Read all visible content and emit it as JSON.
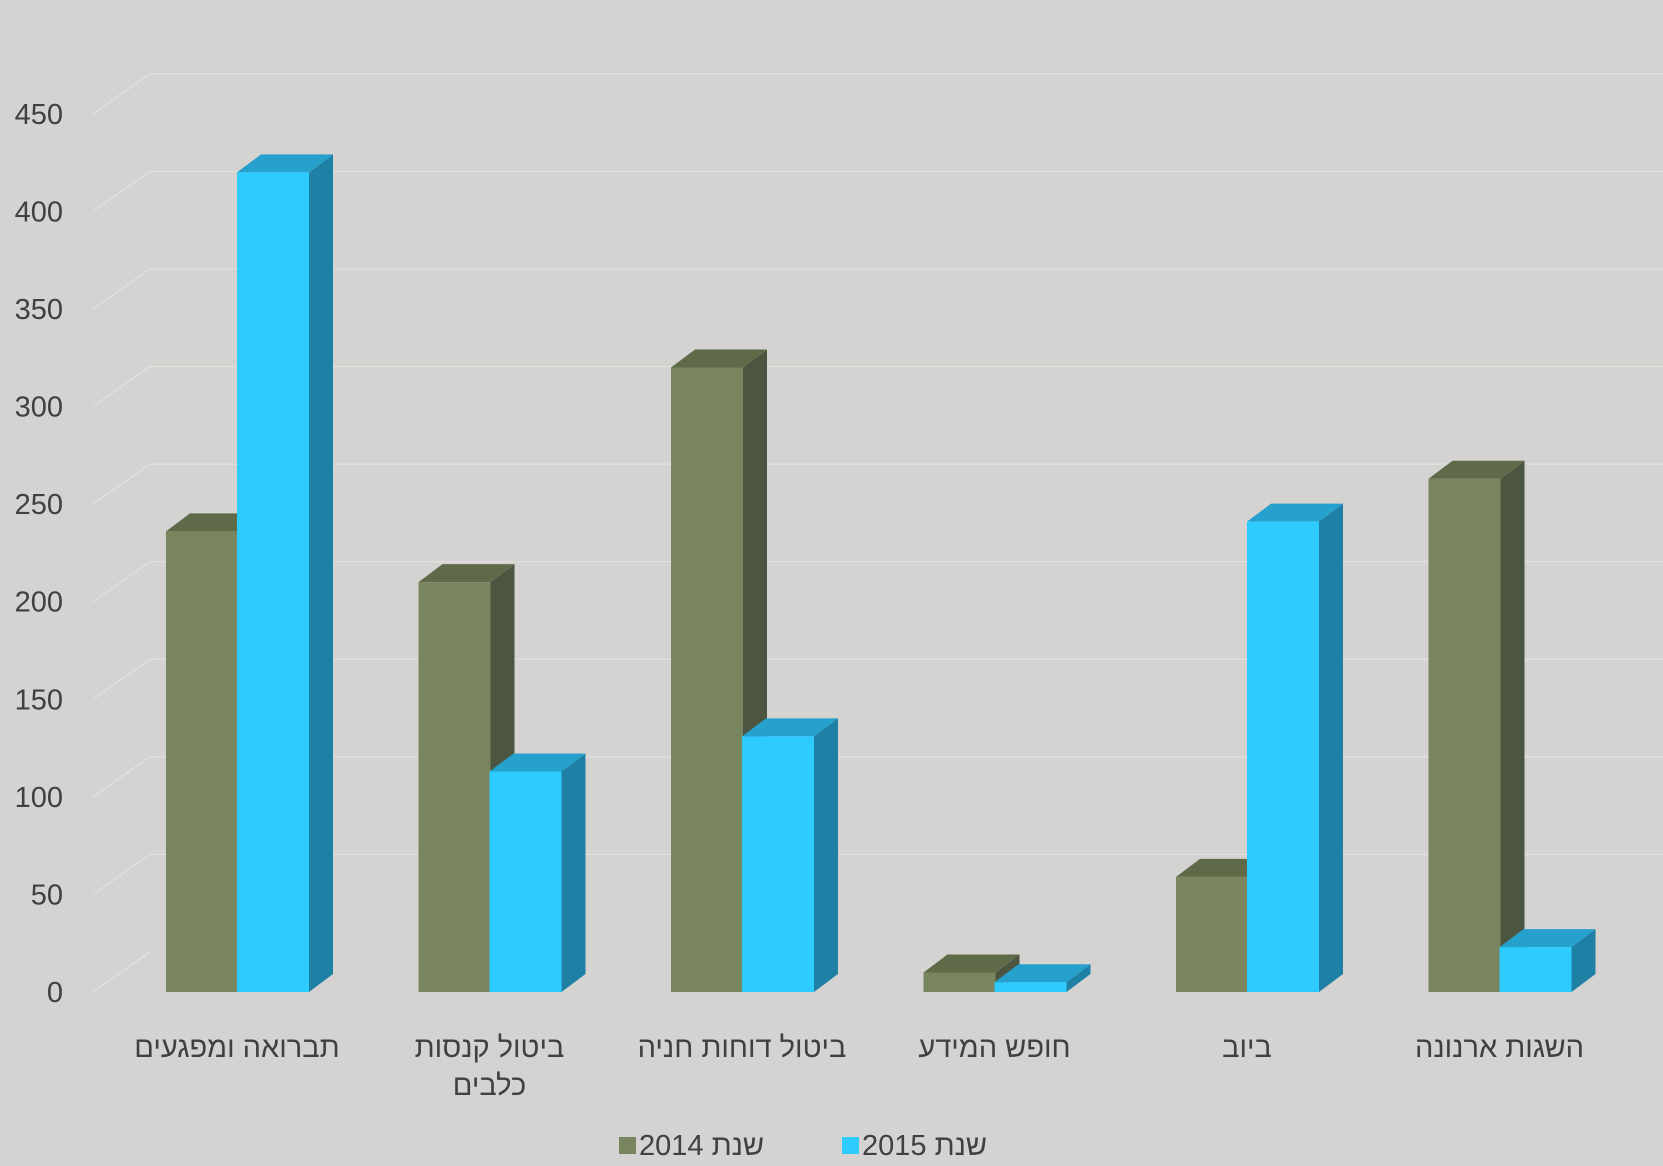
{
  "chart_data": {
    "type": "bar",
    "title": "",
    "xlabel": "",
    "ylabel": "",
    "ylim": [
      0,
      450
    ],
    "yticks": [
      0,
      50,
      100,
      150,
      200,
      250,
      300,
      350,
      400,
      450
    ],
    "grid": true,
    "legend_position": "bottom",
    "categories": [
      [
        "תברואה ומפגעים"
      ],
      [
        "ביטול קנסות",
        "כלבים"
      ],
      [
        "ביטול דוחות חניה"
      ],
      [
        "חופש המידע"
      ],
      [
        "ביוב"
      ],
      [
        "השגות ארנונה"
      ]
    ],
    "series": [
      {
        "name": "שנת 2014",
        "color": "#78855f",
        "values": [
          236,
          210,
          320,
          10,
          59,
          263
        ]
      },
      {
        "name": "שנת 2015",
        "color": "#2ecbff",
        "values": [
          420,
          113,
          131,
          5,
          241,
          23
        ]
      }
    ]
  }
}
